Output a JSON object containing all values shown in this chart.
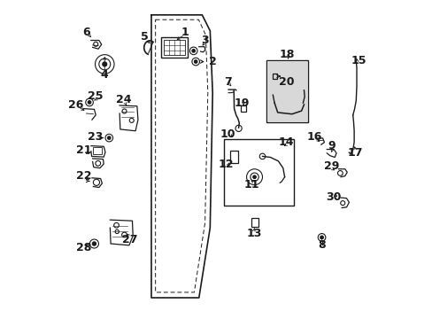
{
  "background_color": "#ffffff",
  "line_color": "#1a1a1a",
  "figsize": [
    4.89,
    3.6
  ],
  "dpi": 100,
  "font_size": 8,
  "components": {
    "door_outer": {
      "x": [
        0.36,
        0.5,
        0.525,
        0.535,
        0.525,
        0.495,
        0.36
      ],
      "y": [
        0.95,
        0.95,
        0.9,
        0.72,
        0.32,
        0.1,
        0.1
      ]
    },
    "door_inner_dashed": {
      "x": [
        0.365,
        0.49,
        0.51,
        0.518,
        0.508,
        0.478,
        0.365
      ],
      "y": [
        0.935,
        0.935,
        0.892,
        0.725,
        0.33,
        0.118,
        0.118
      ]
    }
  }
}
